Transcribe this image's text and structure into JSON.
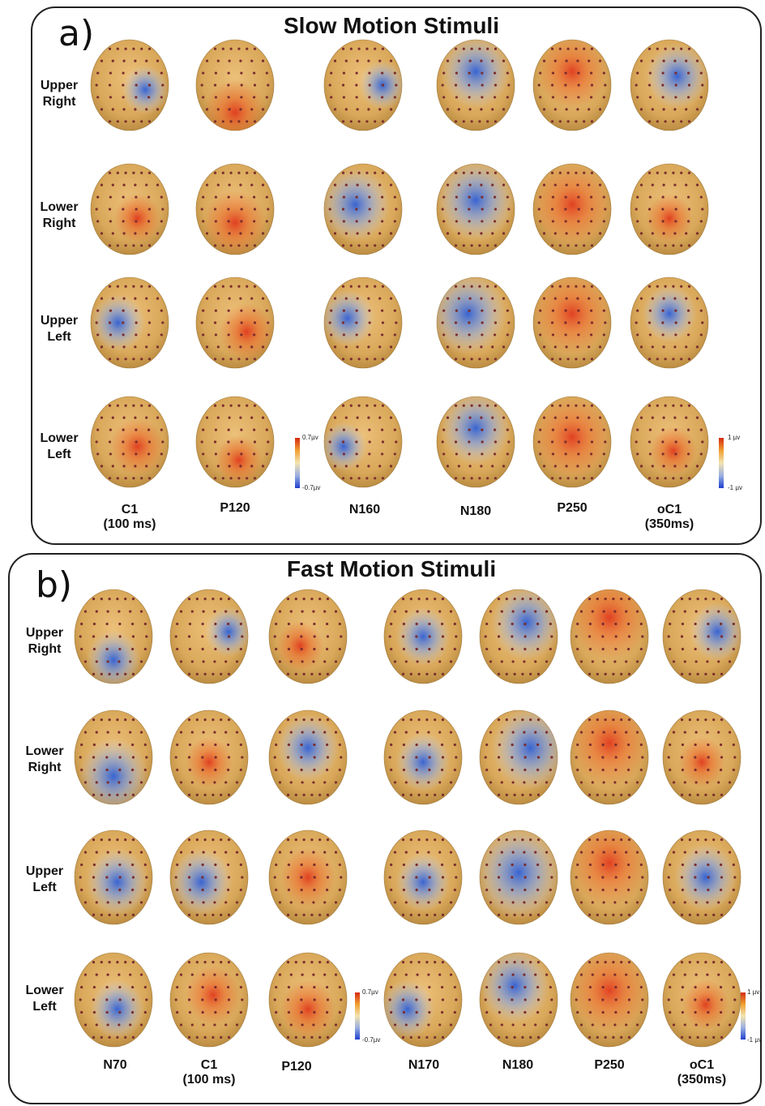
{
  "panels": [
    {
      "letter": "a)",
      "title": "Slow Motion Stimuli",
      "rows": [
        {
          "line1": "Upper",
          "line2": "Right"
        },
        {
          "line1": "Lower",
          "line2": "Right"
        },
        {
          "line1": "Upper",
          "line2": "Left"
        },
        {
          "line1": "Lower",
          "line2": "Left"
        }
      ],
      "columns": [
        {
          "line1": "C1",
          "line2": "(100 ms)"
        },
        {
          "line1": "P120",
          "line2": ""
        },
        {
          "line1": "N160",
          "line2": ""
        },
        {
          "line1": "N180",
          "line2": ""
        },
        {
          "line1": "P250",
          "line2": ""
        },
        {
          "line1": "oC1",
          "line2": "(350ms)"
        }
      ],
      "colorbars": [
        {
          "max_label": "0.7µv",
          "min_label": "-0.7µv"
        },
        {
          "max_label": "1 µv",
          "min_label": "-1 µv"
        }
      ]
    },
    {
      "letter": "b)",
      "title": "Fast Motion Stimuli",
      "rows": [
        {
          "line1": "Upper",
          "line2": "Right"
        },
        {
          "line1": "Lower",
          "line2": "Right"
        },
        {
          "line1": "Upper",
          "line2": "Left"
        },
        {
          "line1": "Lower",
          "line2": "Left"
        }
      ],
      "columns": [
        {
          "line1": "N70",
          "line2": ""
        },
        {
          "line1": "C1",
          "line2": "(100 ms)"
        },
        {
          "line1": "P120",
          "line2": ""
        },
        {
          "line1": "N170",
          "line2": ""
        },
        {
          "line1": "N180",
          "line2": ""
        },
        {
          "line1": "P250",
          "line2": ""
        },
        {
          "line1": "oC1",
          "line2": "(350ms)"
        }
      ],
      "colorbars": [
        {
          "max_label": "0.7µv",
          "min_label": "-0.7µv"
        },
        {
          "max_label": "1 µv",
          "min_label": "-1 µv"
        }
      ]
    }
  ],
  "colors": {
    "scalp_base": "#d9a85a",
    "positive": "#e03a1e",
    "negative": "#2f5fd6",
    "electrode": "#7a2e2e"
  }
}
